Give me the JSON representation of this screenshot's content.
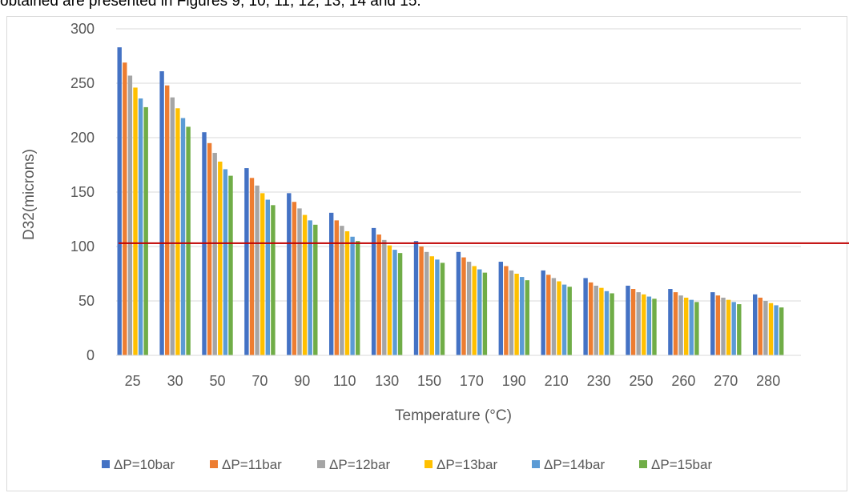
{
  "page": {
    "top_text": "obtained are presented in Figures 9, 10, 11, 12, 13, 14 and 15."
  },
  "chart_data": {
    "type": "bar",
    "title": "",
    "xlabel": "Temperature (°C)",
    "ylabel": "D32(microns)",
    "ylim": [
      0,
      300
    ],
    "yticks": [
      0,
      50,
      100,
      150,
      200,
      250,
      300
    ],
    "grid": true,
    "legend_position": "bottom",
    "categories": [
      "25",
      "30",
      "50",
      "70",
      "90",
      "110",
      "130",
      "150",
      "170",
      "190",
      "210",
      "230",
      "250",
      "260",
      "270",
      "280"
    ],
    "series": [
      {
        "name": "ΔP=10bar",
        "color": "#4472C4",
        "values": [
          283,
          261,
          205,
          172,
          149,
          131,
          117,
          105,
          95,
          86,
          78,
          71,
          64,
          61,
          58,
          56
        ]
      },
      {
        "name": "ΔP=11bar",
        "color": "#ED7D31",
        "values": [
          269,
          248,
          195,
          163,
          141,
          124,
          111,
          100,
          90,
          82,
          74,
          67,
          61,
          58,
          55,
          53
        ]
      },
      {
        "name": "ΔP=12bar",
        "color": "#A5A5A5",
        "values": [
          257,
          237,
          186,
          156,
          135,
          119,
          106,
          95,
          86,
          78,
          71,
          64,
          58,
          55,
          53,
          50
        ]
      },
      {
        "name": "ΔP=13bar",
        "color": "#FFC000",
        "values": [
          246,
          227,
          178,
          149,
          129,
          114,
          101,
          91,
          82,
          75,
          68,
          62,
          56,
          53,
          51,
          48
        ]
      },
      {
        "name": "ΔP=14bar",
        "color": "#5B9BD5",
        "values": [
          236,
          218,
          171,
          143,
          124,
          109,
          97,
          88,
          79,
          72,
          65,
          59,
          54,
          51,
          49,
          46
        ]
      },
      {
        "name": "ΔP=15bar",
        "color": "#70AD47",
        "values": [
          228,
          210,
          165,
          138,
          120,
          105,
          94,
          85,
          76,
          69,
          63,
          57,
          52,
          49,
          47,
          44
        ]
      }
    ],
    "reference_line": {
      "value": 103,
      "color": "#C00000"
    }
  }
}
